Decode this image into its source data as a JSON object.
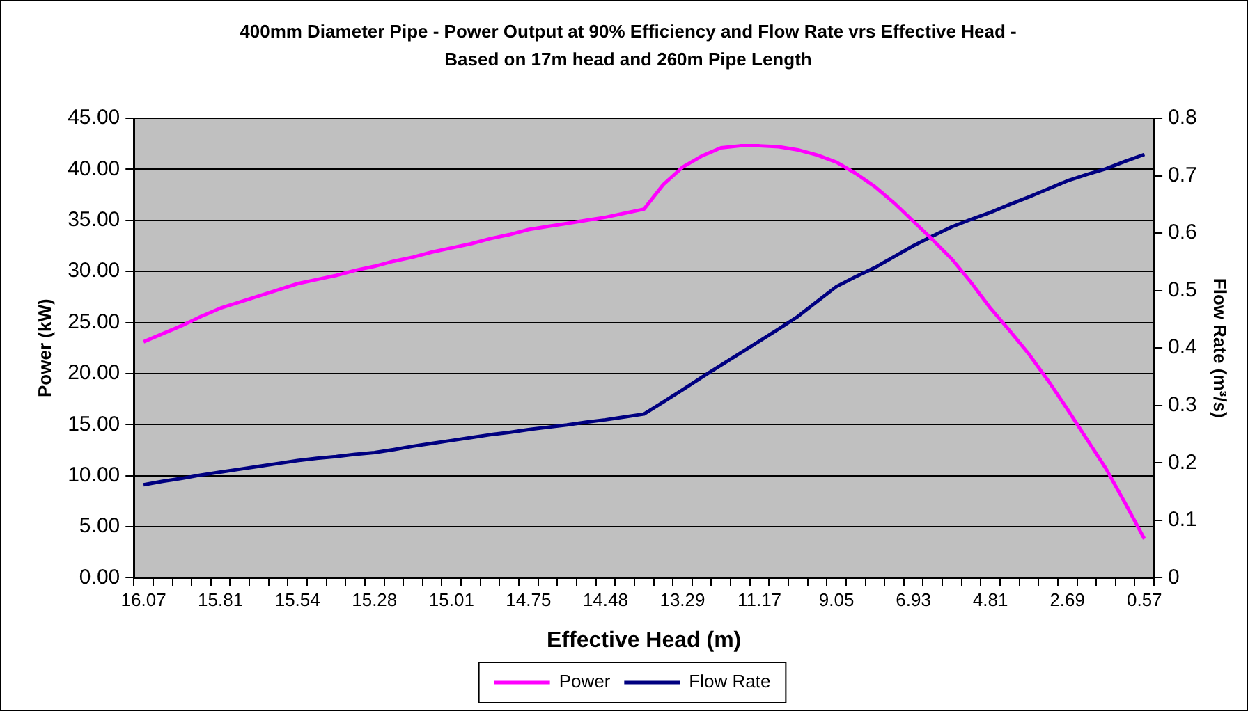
{
  "chart_data": {
    "type": "line",
    "title": "400mm Diameter Pipe - Power Output at 90% Efficiency and Flow Rate vrs Effective Head - Based on 17m head and 260m Pipe Length",
    "xlabel": "Effective Head (m)",
    "ylabel": "Power (kW)",
    "y2label": "Flow Rate (m³/s)",
    "categories": [
      "16.07",
      null,
      null,
      null,
      "15.81",
      null,
      null,
      null,
      "15.54",
      null,
      null,
      null,
      "15.28",
      null,
      null,
      null,
      "15.01",
      null,
      null,
      null,
      "14.75",
      null,
      null,
      null,
      "14.48",
      null,
      null,
      null,
      "13.29",
      null,
      null,
      null,
      "11.17",
      null,
      null,
      null,
      "9.05",
      null,
      null,
      null,
      "6.93",
      null,
      null,
      null,
      "4.81",
      null,
      null,
      null,
      "2.69",
      null,
      null,
      null,
      "0.57"
    ],
    "series": [
      {
        "name": "Power",
        "color": "#ff00ff",
        "values": [
          23.1,
          23.9,
          24.7,
          25.6,
          26.4,
          27.0,
          27.6,
          28.2,
          28.8,
          29.2,
          29.6,
          30.1,
          30.5,
          31.0,
          31.4,
          31.9,
          32.3,
          32.7,
          33.2,
          33.6,
          34.1,
          34.4,
          34.7,
          35.0,
          35.3,
          35.7,
          36.1,
          38.5,
          40.2,
          41.3,
          42.1,
          42.3,
          42.3,
          42.2,
          41.9,
          41.4,
          40.7,
          39.6,
          38.3,
          36.7,
          34.9,
          33.1,
          31.2,
          28.9,
          26.4,
          24.2,
          21.9,
          19.3,
          16.5,
          13.6,
          10.7,
          7.3,
          3.8
        ]
      },
      {
        "name": "Flow Rate",
        "color": "#000080",
        "axis": "y2",
        "values": [
          0.162,
          0.168,
          0.173,
          0.179,
          0.184,
          0.189,
          0.194,
          0.199,
          0.204,
          0.208,
          0.211,
          0.215,
          0.218,
          0.223,
          0.229,
          0.234,
          0.239,
          0.244,
          0.249,
          0.253,
          0.258,
          0.262,
          0.266,
          0.271,
          0.275,
          0.28,
          0.285,
          0.306,
          0.327,
          0.349,
          0.37,
          0.391,
          0.412,
          0.433,
          0.455,
          0.481,
          0.507,
          0.524,
          0.54,
          0.559,
          0.578,
          0.595,
          0.611,
          0.624,
          0.636,
          0.65,
          0.663,
          0.677,
          0.691,
          0.702,
          0.712,
          0.725,
          0.737
        ]
      }
    ],
    "ylim": [
      0,
      45
    ],
    "yticks": [
      {
        "value": 0,
        "label": "0.00"
      },
      {
        "value": 5,
        "label": "5.00"
      },
      {
        "value": 10,
        "label": "10.00"
      },
      {
        "value": 15,
        "label": "15.00"
      },
      {
        "value": 20,
        "label": "20.00"
      },
      {
        "value": 25,
        "label": "25.00"
      },
      {
        "value": 30,
        "label": "30.00"
      },
      {
        "value": 35,
        "label": "35.00"
      },
      {
        "value": 40,
        "label": "40.00"
      },
      {
        "value": 45,
        "label": "45.00"
      }
    ],
    "y2lim": [
      0,
      0.8
    ],
    "y2ticks": [
      0,
      0.1,
      0.2,
      0.3,
      0.4,
      0.5,
      0.6,
      0.7,
      0.8
    ],
    "grid": "y",
    "legend": "bottom",
    "marker": "none",
    "line_style": "solid"
  }
}
